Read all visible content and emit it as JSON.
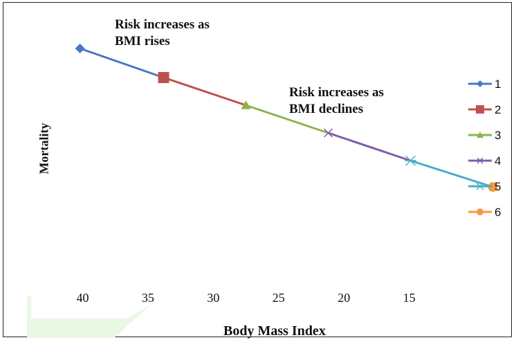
{
  "chart_data": {
    "type": "line",
    "title": "",
    "xlabel": "Body Mass Index",
    "ylabel": "Mortality",
    "x_reversed": true,
    "xlim": [
      45,
      9
    ],
    "ylim": [
      0,
      10
    ],
    "x_ticks": [
      40,
      35,
      30,
      25,
      20,
      15
    ],
    "grid": false,
    "legend_position": "right",
    "series": [
      {
        "name": "1",
        "color": "#4a77c2",
        "marker": "diamond",
        "x": [
          40.2,
          33.8
        ],
        "y": [
          8.6,
          7.55
        ]
      },
      {
        "name": "2",
        "color": "#c0504d",
        "marker": "square",
        "x": [
          33.8,
          27.5
        ],
        "y": [
          7.55,
          6.55
        ]
      },
      {
        "name": "3",
        "color": "#8db54a",
        "marker": "triangle",
        "x": [
          27.5,
          21.2
        ],
        "y": [
          6.55,
          5.55
        ]
      },
      {
        "name": "4",
        "color": "#7f5da6",
        "marker": "x",
        "x": [
          21.2,
          14.9
        ],
        "y": [
          5.55,
          4.55
        ]
      },
      {
        "name": "5",
        "color": "#4aacc6",
        "marker": "star",
        "x": [
          14.9,
          8.6
        ],
        "y": [
          4.55,
          3.6
        ]
      },
      {
        "name": "6",
        "color": "#f59a3c",
        "marker": "circle",
        "x": [
          8.6
        ],
        "y": [
          3.6
        ]
      }
    ],
    "annotations": [
      {
        "text_line1": "Risk increases as",
        "text_line2": "BMI rises"
      },
      {
        "text_line1": "Risk increases as",
        "text_line2": "BMI declines"
      }
    ]
  }
}
